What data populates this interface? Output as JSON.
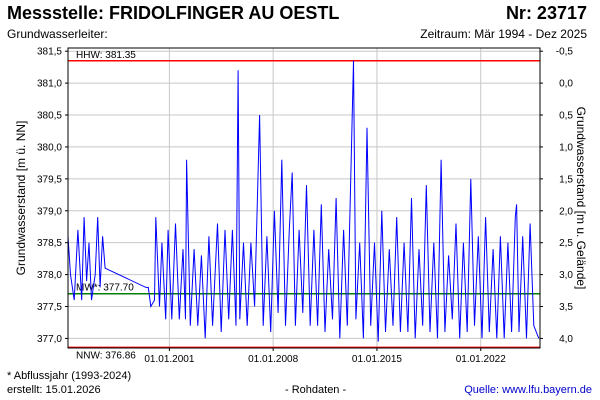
{
  "header": {
    "station": "Messstelle: FRIDOLFINGER AU OESTL",
    "number": "Nr: 23717",
    "aquifer": "Grundwasserleiter:",
    "period": "Zeitraum: Mär 1994 - Dez 2025"
  },
  "footer": {
    "note": "* Abflussjahr (1993-2024)",
    "created": "erstellt:  15.01.2026",
    "raw": "- Rohdaten -",
    "source": "Quelle: www.lfu.bayern.de"
  },
  "colors": {
    "series": "#0000ff",
    "hhw": "#ff0000",
    "nnw": "#ff0000",
    "mw": "#008000",
    "grid": "#c8c8c8"
  },
  "chart_data": {
    "type": "line",
    "ylabel": "Grundwasserstand [m ü. NN]",
    "y2label": "Grundwasserstand [m u. Gelände]",
    "ylim": [
      376.85,
      381.55
    ],
    "yticks": [
      "381,5",
      "381,0",
      "380,5",
      "380,0",
      "379,5",
      "379,0",
      "378,5",
      "378,0",
      "377,5",
      "377,0"
    ],
    "y2ticks": [
      "-0,5",
      "0,0",
      "0,5",
      "1,0",
      "1,5",
      "2,0",
      "2,5",
      "3,0",
      "3,5",
      "4,0"
    ],
    "xlim": [
      "1994-03-01",
      "2025-12-31"
    ],
    "xticks": [
      "01.01.2001",
      "01.01.2008",
      "01.01.2015",
      "01.01.2022"
    ],
    "grid": true,
    "reference_lines": [
      {
        "name": "HHW",
        "label": "HHW: 381.35",
        "value": 381.35
      },
      {
        "name": "MW",
        "label": "MW*: 377.70",
        "value": 377.7
      },
      {
        "name": "NNW",
        "label": "NNW: 376.86",
        "value": 376.86
      }
    ],
    "series": [
      {
        "x": [
          "1994-03-01",
          "1994-05-01",
          "1994-08-01",
          "1994-11-01",
          "1995-02-01",
          "1995-04-01",
          "1995-06-01",
          "1995-08-01",
          "1995-10-01",
          "1996-01-01",
          "1996-03-01",
          "1996-05-01",
          "1996-07-01",
          "1996-09-01",
          "1999-06-01",
          "1999-08-01",
          "1999-10-01",
          "2000-01-01",
          "2000-02-01",
          "2000-05-01",
          "2000-07-01",
          "2000-10-01",
          "2000-12-01",
          "2001-03-01",
          "2001-06-01",
          "2001-09-01",
          "2001-12-01",
          "2002-02-01",
          "2002-03-01",
          "2002-06-01",
          "2002-09-01",
          "2002-12-01",
          "2003-03-01",
          "2003-06-01",
          "2003-09-01",
          "2003-12-01",
          "2004-04-01",
          "2004-07-01",
          "2004-10-01",
          "2005-01-01",
          "2005-04-01",
          "2005-07-01",
          "2005-08-20",
          "2005-10-01",
          "2006-01-01",
          "2006-04-01",
          "2006-07-01",
          "2006-10-01",
          "2007-02-01",
          "2007-05-01",
          "2007-08-01",
          "2007-11-01",
          "2008-02-01",
          "2008-05-01",
          "2008-08-01",
          "2008-11-01",
          "2009-02-01",
          "2009-04-15",
          "2009-07-01",
          "2009-10-01",
          "2010-01-01",
          "2010-04-01",
          "2010-07-01",
          "2010-10-01",
          "2011-01-01",
          "2011-04-01",
          "2011-07-01",
          "2011-10-01",
          "2012-01-01",
          "2012-04-01",
          "2012-07-01",
          "2012-10-01",
          "2013-01-01",
          "2013-03-01",
          "2013-06-02",
          "2013-08-01",
          "2013-11-01",
          "2014-02-01",
          "2014-05-01",
          "2014-08-01",
          "2014-11-01",
          "2015-02-01",
          "2015-05-01",
          "2015-08-01",
          "2015-11-01",
          "2016-02-01",
          "2016-05-01",
          "2016-08-01",
          "2016-11-01",
          "2017-02-01",
          "2017-05-01",
          "2017-08-01",
          "2017-11-01",
          "2018-02-01",
          "2018-05-01",
          "2018-08-01",
          "2018-11-01",
          "2019-02-01",
          "2019-05-01",
          "2019-08-01",
          "2019-11-01",
          "2020-02-01",
          "2020-05-01",
          "2020-08-01",
          "2020-11-01",
          "2021-02-01",
          "2021-05-01",
          "2021-08-01",
          "2021-11-01",
          "2022-02-01",
          "2022-05-01",
          "2022-08-01",
          "2022-11-01",
          "2023-02-01",
          "2023-05-01",
          "2023-08-01",
          "2023-11-01",
          "2024-02-01",
          "2024-05-01",
          "2024-06-03",
          "2024-08-01",
          "2024-11-01",
          "2025-02-01",
          "2025-05-01",
          "2025-08-01",
          "2025-12-01"
        ],
        "y": [
          378.6,
          378.0,
          377.6,
          378.7,
          377.6,
          378.9,
          377.9,
          378.5,
          377.6,
          378.0,
          378.9,
          377.8,
          378.6,
          378.1,
          377.8,
          377.8,
          377.5,
          377.6,
          378.9,
          377.5,
          378.5,
          377.3,
          378.7,
          377.3,
          378.8,
          377.3,
          378.4,
          377.3,
          379.8,
          377.2,
          378.4,
          377.2,
          378.3,
          377.0,
          378.6,
          377.2,
          378.8,
          377.1,
          378.7,
          377.3,
          378.7,
          377.2,
          381.2,
          377.3,
          378.5,
          377.2,
          378.5,
          377.5,
          380.5,
          377.2,
          378.6,
          377.1,
          379.0,
          377.4,
          379.8,
          377.2,
          378.7,
          379.6,
          377.2,
          378.7,
          377.4,
          379.4,
          377.2,
          378.7,
          377.2,
          379.1,
          377.1,
          378.4,
          377.3,
          379.2,
          377.0,
          378.7,
          377.2,
          378.8,
          381.35,
          377.3,
          378.5,
          377.0,
          380.3,
          377.2,
          378.5,
          376.95,
          379.0,
          377.1,
          378.4,
          377.2,
          378.9,
          377.1,
          378.5,
          377.1,
          379.2,
          377.0,
          378.4,
          377.2,
          379.4,
          377.1,
          378.5,
          377.0,
          379.8,
          377.1,
          378.3,
          377.3,
          378.8,
          377.0,
          378.5,
          377.1,
          379.5,
          377.2,
          378.6,
          377.0,
          378.9,
          377.1,
          378.4,
          377.0,
          378.6,
          377.0,
          378.5,
          377.1,
          378.9,
          379.1,
          377.1,
          378.6,
          377.0,
          378.8,
          377.2,
          377.0
        ]
      }
    ]
  }
}
